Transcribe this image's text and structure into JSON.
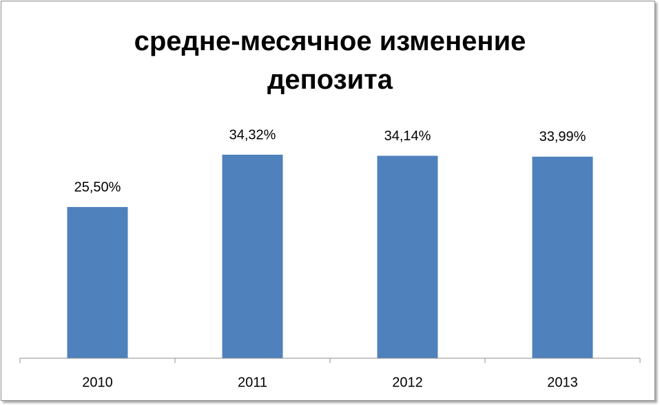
{
  "chart_data": {
    "type": "bar",
    "title": "средне-месячное изменение депозита",
    "categories": [
      "2010",
      "2011",
      "2012",
      "2013"
    ],
    "values": [
      25.5,
      34.32,
      34.14,
      33.99
    ],
    "value_labels": [
      "25,50%",
      "34,32%",
      "34,14%",
      "33,99%"
    ],
    "color": "#4f81bd",
    "ylim": [
      0,
      40
    ]
  }
}
